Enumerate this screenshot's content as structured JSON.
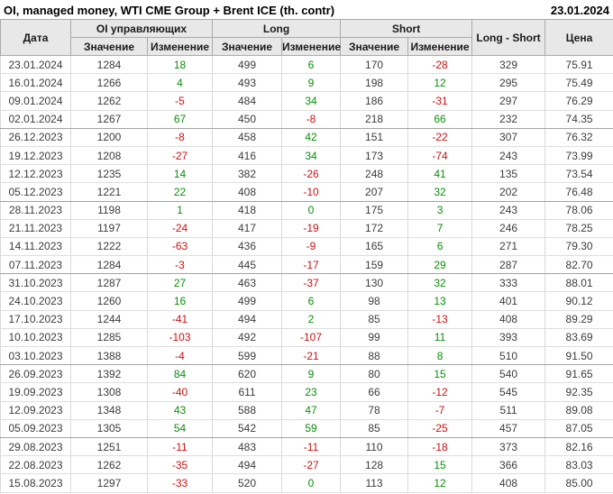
{
  "header": {
    "title": "OI, managed money, WTI CME Group + Brent ICE (th. contr)",
    "report_date": "23.01.2024"
  },
  "colors": {
    "positive_change": "#0a8f0a",
    "negative_change": "#cc1111",
    "header_bg": "#e8e8e8"
  },
  "table": {
    "columns": {
      "date": "Дата",
      "group_oi": "OI управляющих",
      "group_long": "Long",
      "group_short": "Short",
      "long_short": "Long - Short",
      "price": "Цена",
      "sub_value": "Значение",
      "sub_change": "Изменение"
    },
    "rows": [
      {
        "date": "23.01.2024",
        "oi": 1284,
        "oi_chg": 18,
        "long": 499,
        "long_chg": 6,
        "short": 170,
        "short_chg": -28,
        "ls": 329,
        "price": "75.91",
        "month_end": false
      },
      {
        "date": "16.01.2024",
        "oi": 1266,
        "oi_chg": 4,
        "long": 493,
        "long_chg": 9,
        "short": 198,
        "short_chg": 12,
        "ls": 295,
        "price": "75.49",
        "month_end": false
      },
      {
        "date": "09.01.2024",
        "oi": 1262,
        "oi_chg": -5,
        "long": 484,
        "long_chg": 34,
        "short": 186,
        "short_chg": -31,
        "ls": 297,
        "price": "76.29",
        "month_end": false
      },
      {
        "date": "02.01.2024",
        "oi": 1267,
        "oi_chg": 67,
        "long": 450,
        "long_chg": -8,
        "short": 218,
        "short_chg": 66,
        "ls": 232,
        "price": "74.35",
        "month_end": true
      },
      {
        "date": "26.12.2023",
        "oi": 1200,
        "oi_chg": -8,
        "long": 458,
        "long_chg": 42,
        "short": 151,
        "short_chg": -22,
        "ls": 307,
        "price": "76.32",
        "month_end": false
      },
      {
        "date": "19.12.2023",
        "oi": 1208,
        "oi_chg": -27,
        "long": 416,
        "long_chg": 34,
        "short": 173,
        "short_chg": -74,
        "ls": 243,
        "price": "73.99",
        "month_end": false
      },
      {
        "date": "12.12.2023",
        "oi": 1235,
        "oi_chg": 14,
        "long": 382,
        "long_chg": -26,
        "short": 248,
        "short_chg": 41,
        "ls": 135,
        "price": "73.54",
        "month_end": false
      },
      {
        "date": "05.12.2023",
        "oi": 1221,
        "oi_chg": 22,
        "long": 408,
        "long_chg": -10,
        "short": 207,
        "short_chg": 32,
        "ls": 202,
        "price": "76.48",
        "month_end": true
      },
      {
        "date": "28.11.2023",
        "oi": 1198,
        "oi_chg": 1,
        "long": 418,
        "long_chg": 0,
        "short": 175,
        "short_chg": 3,
        "ls": 243,
        "price": "78.06",
        "month_end": false
      },
      {
        "date": "21.11.2023",
        "oi": 1197,
        "oi_chg": -24,
        "long": 417,
        "long_chg": -19,
        "short": 172,
        "short_chg": 7,
        "ls": 246,
        "price": "78.25",
        "month_end": false
      },
      {
        "date": "14.11.2023",
        "oi": 1222,
        "oi_chg": -63,
        "long": 436,
        "long_chg": -9,
        "short": 165,
        "short_chg": 6,
        "ls": 271,
        "price": "79.30",
        "month_end": false
      },
      {
        "date": "07.11.2023",
        "oi": 1284,
        "oi_chg": -3,
        "long": 445,
        "long_chg": -17,
        "short": 159,
        "short_chg": 29,
        "ls": 287,
        "price": "82.70",
        "month_end": true
      },
      {
        "date": "31.10.2023",
        "oi": 1287,
        "oi_chg": 27,
        "long": 463,
        "long_chg": -37,
        "short": 130,
        "short_chg": 32,
        "ls": 333,
        "price": "88.01",
        "month_end": false
      },
      {
        "date": "24.10.2023",
        "oi": 1260,
        "oi_chg": 16,
        "long": 499,
        "long_chg": 6,
        "short": 98,
        "short_chg": 13,
        "ls": 401,
        "price": "90.12",
        "month_end": false
      },
      {
        "date": "17.10.2023",
        "oi": 1244,
        "oi_chg": -41,
        "long": 494,
        "long_chg": 2,
        "short": 85,
        "short_chg": -13,
        "ls": 408,
        "price": "89.29",
        "month_end": false
      },
      {
        "date": "10.10.2023",
        "oi": 1285,
        "oi_chg": -103,
        "long": 492,
        "long_chg": -107,
        "short": 99,
        "short_chg": 11,
        "ls": 393,
        "price": "83.69",
        "month_end": false
      },
      {
        "date": "03.10.2023",
        "oi": 1388,
        "oi_chg": -4,
        "long": 599,
        "long_chg": -21,
        "short": 88,
        "short_chg": 8,
        "ls": 510,
        "price": "91.50",
        "month_end": true
      },
      {
        "date": "26.09.2023",
        "oi": 1392,
        "oi_chg": 84,
        "long": 620,
        "long_chg": 9,
        "short": 80,
        "short_chg": 15,
        "ls": 540,
        "price": "91.65",
        "month_end": false
      },
      {
        "date": "19.09.2023",
        "oi": 1308,
        "oi_chg": -40,
        "long": 611,
        "long_chg": 23,
        "short": 66,
        "short_chg": -12,
        "ls": 545,
        "price": "92.35",
        "month_end": false
      },
      {
        "date": "12.09.2023",
        "oi": 1348,
        "oi_chg": 43,
        "long": 588,
        "long_chg": 47,
        "short": 78,
        "short_chg": -7,
        "ls": 511,
        "price": "89.08",
        "month_end": false
      },
      {
        "date": "05.09.2023",
        "oi": 1305,
        "oi_chg": 54,
        "long": 542,
        "long_chg": 59,
        "short": 85,
        "short_chg": -25,
        "ls": 457,
        "price": "87.05",
        "month_end": true
      },
      {
        "date": "29.08.2023",
        "oi": 1251,
        "oi_chg": -11,
        "long": 483,
        "long_chg": -11,
        "short": 110,
        "short_chg": -18,
        "ls": 373,
        "price": "82.16",
        "month_end": false
      },
      {
        "date": "22.08.2023",
        "oi": 1262,
        "oi_chg": -35,
        "long": 494,
        "long_chg": -27,
        "short": 128,
        "short_chg": 15,
        "ls": 366,
        "price": "83.03",
        "month_end": false
      },
      {
        "date": "15.08.2023",
        "oi": 1297,
        "oi_chg": -33,
        "long": 520,
        "long_chg": 0,
        "short": 113,
        "short_chg": 12,
        "ls": 408,
        "price": "85.00",
        "month_end": false
      }
    ]
  }
}
